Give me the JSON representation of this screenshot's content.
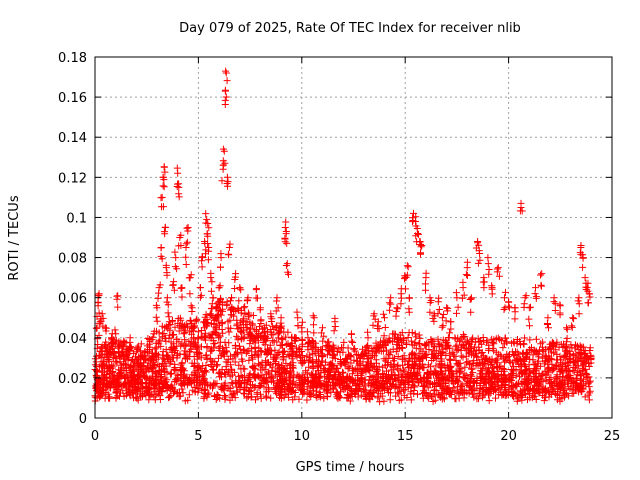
{
  "chart_data": {
    "type": "scatter",
    "title": "Day 079 of 2025, Rate Of TEC Index for receiver nlib",
    "xlabel": "GPS time / hours",
    "ylabel": "ROTI / TECUs",
    "xlim": [
      0,
      25
    ],
    "ylim": [
      0,
      0.18
    ],
    "xticks": [
      "0",
      "5",
      "10",
      "15",
      "20",
      "25"
    ],
    "yticks": [
      "0",
      "0.02",
      "0.04",
      "0.06",
      "0.08",
      "0.1",
      "0.12",
      "0.14",
      "0.16",
      "0.18"
    ],
    "grid": true,
    "marker": "plus",
    "marker_color": "#ff0000",
    "points": [
      [
        0.05,
        0.015
      ],
      [
        0.1,
        0.045
      ],
      [
        0.15,
        0.056
      ],
      [
        0.2,
        0.062
      ],
      [
        0.25,
        0.048
      ],
      [
        0.3,
        0.035
      ],
      [
        0.35,
        0.052
      ],
      [
        0.4,
        0.028
      ],
      [
        0.5,
        0.045
      ],
      [
        0.6,
        0.033
      ],
      [
        0.7,
        0.022
      ],
      [
        0.8,
        0.04
      ],
      [
        0.9,
        0.03
      ],
      [
        1.0,
        0.042
      ],
      [
        1.1,
        0.061
      ],
      [
        1.2,
        0.036
      ],
      [
        1.3,
        0.025
      ],
      [
        1.4,
        0.038
      ],
      [
        1.5,
        0.029
      ],
      [
        1.6,
        0.032
      ],
      [
        1.7,
        0.04
      ],
      [
        1.8,
        0.02
      ],
      [
        1.9,
        0.028
      ],
      [
        2.0,
        0.033
      ],
      [
        2.2,
        0.027
      ],
      [
        2.4,
        0.031
      ],
      [
        2.6,
        0.024
      ],
      [
        2.8,
        0.03
      ],
      [
        3.0,
        0.055
      ],
      [
        3.1,
        0.065
      ],
      [
        3.2,
        0.085
      ],
      [
        3.25,
        0.11
      ],
      [
        3.3,
        0.12
      ],
      [
        3.35,
        0.125
      ],
      [
        3.4,
        0.095
      ],
      [
        3.45,
        0.075
      ],
      [
        3.5,
        0.06
      ],
      [
        3.6,
        0.048
      ],
      [
        3.7,
        0.035
      ],
      [
        3.8,
        0.068
      ],
      [
        3.9,
        0.08
      ],
      [
        4.0,
        0.122
      ],
      [
        4.05,
        0.115
      ],
      [
        4.1,
        0.09
      ],
      [
        4.2,
        0.065
      ],
      [
        4.3,
        0.045
      ],
      [
        4.4,
        0.085
      ],
      [
        4.5,
        0.095
      ],
      [
        4.6,
        0.07
      ],
      [
        4.7,
        0.055
      ],
      [
        4.8,
        0.045
      ],
      [
        5.0,
        0.04
      ],
      [
        5.1,
        0.065
      ],
      [
        5.2,
        0.08
      ],
      [
        5.3,
        0.088
      ],
      [
        5.4,
        0.099
      ],
      [
        5.45,
        0.097
      ],
      [
        5.5,
        0.085
      ],
      [
        5.6,
        0.07
      ],
      [
        5.7,
        0.06
      ],
      [
        5.8,
        0.05
      ],
      [
        5.9,
        0.055
      ],
      [
        6.0,
        0.065
      ],
      [
        6.1,
        0.08
      ],
      [
        6.2,
        0.126
      ],
      [
        6.25,
        0.133
      ],
      [
        6.3,
        0.163
      ],
      [
        6.35,
        0.172
      ],
      [
        6.4,
        0.12
      ],
      [
        6.5,
        0.085
      ],
      [
        6.6,
        0.06
      ],
      [
        6.8,
        0.072
      ],
      [
        7.0,
        0.065
      ],
      [
        7.2,
        0.055
      ],
      [
        7.4,
        0.06
      ],
      [
        7.6,
        0.047
      ],
      [
        7.8,
        0.064
      ],
      [
        8.0,
        0.055
      ],
      [
        8.2,
        0.045
      ],
      [
        8.5,
        0.052
      ],
      [
        8.8,
        0.06
      ],
      [
        9.0,
        0.05
      ],
      [
        9.2,
        0.095
      ],
      [
        9.25,
        0.093
      ],
      [
        9.3,
        0.077
      ],
      [
        9.5,
        0.04
      ],
      [
        9.8,
        0.05
      ],
      [
        10.0,
        0.045
      ],
      [
        10.3,
        0.04
      ],
      [
        10.6,
        0.05
      ],
      [
        11.0,
        0.045
      ],
      [
        11.3,
        0.038
      ],
      [
        11.6,
        0.048
      ],
      [
        12.0,
        0.035
      ],
      [
        12.4,
        0.042
      ],
      [
        12.8,
        0.03
      ],
      [
        13.2,
        0.04
      ],
      [
        13.5,
        0.052
      ],
      [
        13.7,
        0.048
      ],
      [
        14.0,
        0.05
      ],
      [
        14.3,
        0.06
      ],
      [
        14.6,
        0.055
      ],
      [
        14.8,
        0.062
      ],
      [
        15.0,
        0.07
      ],
      [
        15.1,
        0.076
      ],
      [
        15.2,
        0.06
      ],
      [
        15.4,
        0.102
      ],
      [
        15.5,
        0.098
      ],
      [
        15.6,
        0.092
      ],
      [
        15.7,
        0.088
      ],
      [
        15.8,
        0.086
      ],
      [
        16.0,
        0.07
      ],
      [
        16.2,
        0.06
      ],
      [
        16.4,
        0.052
      ],
      [
        16.6,
        0.058
      ],
      [
        16.8,
        0.05
      ],
      [
        17.0,
        0.055
      ],
      [
        17.2,
        0.048
      ],
      [
        17.5,
        0.06
      ],
      [
        17.8,
        0.065
      ],
      [
        18.0,
        0.075
      ],
      [
        18.2,
        0.06
      ],
      [
        18.5,
        0.088
      ],
      [
        18.6,
        0.082
      ],
      [
        18.8,
        0.07
      ],
      [
        19.0,
        0.08
      ],
      [
        19.2,
        0.065
      ],
      [
        19.5,
        0.075
      ],
      [
        19.8,
        0.06
      ],
      [
        20.0,
        0.058
      ],
      [
        20.3,
        0.055
      ],
      [
        20.6,
        0.107
      ],
      [
        20.8,
        0.06
      ],
      [
        21.0,
        0.055
      ],
      [
        21.3,
        0.065
      ],
      [
        21.6,
        0.072
      ],
      [
        21.9,
        0.05
      ],
      [
        22.2,
        0.06
      ],
      [
        22.5,
        0.056
      ],
      [
        22.8,
        0.045
      ],
      [
        23.1,
        0.05
      ],
      [
        23.4,
        0.06
      ],
      [
        23.5,
        0.086
      ],
      [
        23.6,
        0.08
      ],
      [
        23.7,
        0.07
      ],
      [
        23.8,
        0.065
      ],
      [
        23.9,
        0.062
      ]
    ],
    "band": {
      "low": [
        0.008,
        0.018
      ],
      "high_profile": [
        [
          0.0,
          0.035
        ],
        [
          1.0,
          0.04
        ],
        [
          2.0,
          0.035
        ],
        [
          3.0,
          0.045
        ],
        [
          4.0,
          0.05
        ],
        [
          5.0,
          0.05
        ],
        [
          6.0,
          0.06
        ],
        [
          7.0,
          0.055
        ],
        [
          8.0,
          0.05
        ],
        [
          9.0,
          0.045
        ],
        [
          10.0,
          0.04
        ],
        [
          11.0,
          0.038
        ],
        [
          12.0,
          0.035
        ],
        [
          13.0,
          0.035
        ],
        [
          14.0,
          0.04
        ],
        [
          15.0,
          0.045
        ],
        [
          16.0,
          0.04
        ],
        [
          17.0,
          0.04
        ],
        [
          18.0,
          0.042
        ],
        [
          19.0,
          0.04
        ],
        [
          20.0,
          0.04
        ],
        [
          21.0,
          0.04
        ],
        [
          22.0,
          0.038
        ],
        [
          23.0,
          0.038
        ],
        [
          24.0,
          0.035
        ]
      ]
    }
  }
}
